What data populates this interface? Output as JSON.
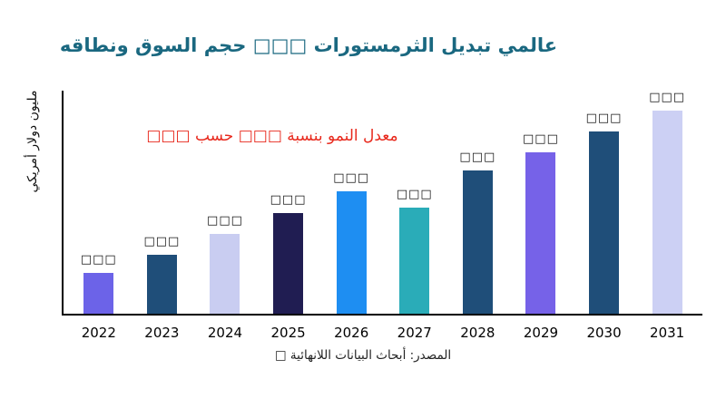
{
  "title": "عالمي تبديل الثرمستورات □□□ حجم السوق ونطاقه",
  "annotation": "معدل النمو بنسبة □□□ حسب □□□",
  "source": "المصدر: أبحاث البيانات اللانهائية □",
  "colors": {
    "title_text": "#1a6880",
    "annotation_text": "#e8291d",
    "axis": "#000000"
  },
  "chart_data": {
    "type": "bar",
    "title": "عالمي تبديل الثرمستورات □□□ حجم السوق ونطاقه",
    "ylabel": "مليون دولار أمريكي",
    "xlabel": "",
    "categories": [
      "2022",
      "2023",
      "2024",
      "2025",
      "2026",
      "2027",
      "2028",
      "2029",
      "2030",
      "2031"
    ],
    "values": [
      20,
      29,
      39,
      49,
      60,
      52,
      70,
      79,
      89,
      100
    ],
    "bar_labels": [
      "□□□",
      "□□□",
      "□□□",
      "□□□",
      "□□□",
      "□□□",
      "□□□",
      "□□□",
      "□□□",
      "□□□"
    ],
    "bar_colors": [
      "#6c63e8",
      "#1f4e79",
      "#c9cdf1",
      "#201d52",
      "#1e8ef2",
      "#2aacb8",
      "#1f4e79",
      "#7662e8",
      "#1f4e79",
      "#ccd0f4"
    ],
    "ylim": [
      0,
      109
    ],
    "grid": false,
    "legend": "none",
    "annotation": "معدل النمو بنسبة □□□ حسب □□□",
    "source_note": "المصدر: أبحاث البيانات اللانهائية □",
    "value_note": "values are relative estimates; data labels rendered as missing-glyph boxes in original"
  }
}
